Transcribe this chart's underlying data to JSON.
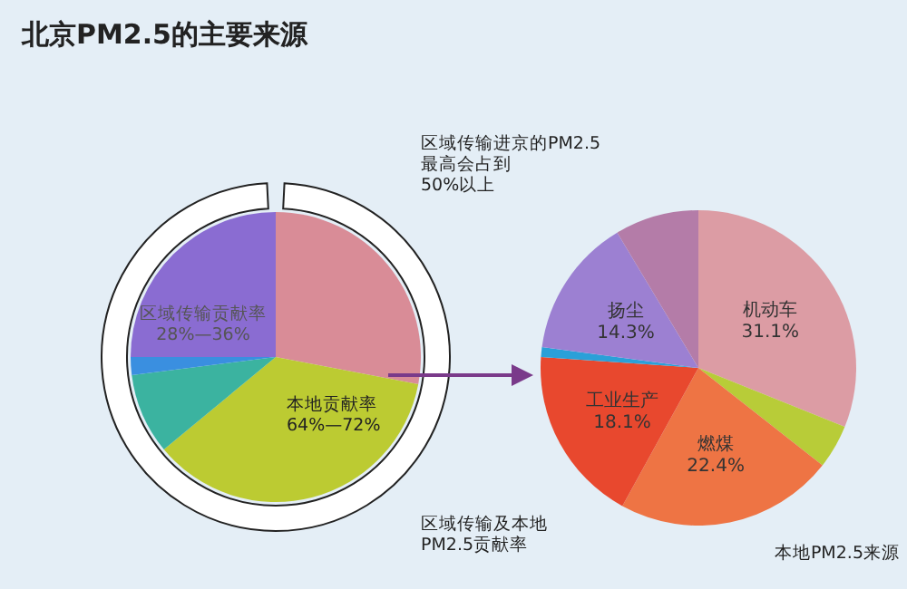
{
  "chart_data": [
    {
      "type": "pie",
      "title": "北京PM2.5的主要来源",
      "categories": [
        null,
        null,
        null,
        null,
        null
      ],
      "values": [
        28,
        36,
        9,
        2,
        25
      ],
      "colors": [
        "#d98c97",
        "#bccb32",
        "#3bb3a0",
        "#3a8fe0",
        "#8a6cd2"
      ],
      "legend": false,
      "annotations": [
        "区域传输贡献率\n28%—36%",
        "本地贡献率\n64%—72%",
        "区域传输进京的PM2.5\n最高会占到\n50%以上",
        "区域传输及本地\nPM2.5贡献率"
      ]
    },
    {
      "type": "pie",
      "categories": [
        "机动车",
        null,
        "燃煤",
        "工业生产",
        null,
        "扬尘",
        null
      ],
      "values": [
        31.1,
        4.5,
        22.4,
        18.1,
        1.0,
        14.3,
        8.6
      ],
      "value_labels": [
        "31.1%",
        null,
        "22.4%",
        "18.1%",
        null,
        "14.3%",
        null
      ],
      "colors": [
        "#dc9ca4",
        "#b8cc38",
        "#ee7444",
        "#e8482e",
        "#2aa0d8",
        "#9c80d2",
        "#b47ca8"
      ],
      "legend": false,
      "annotations": [
        "本地PM2.5来源"
      ]
    }
  ]
}
